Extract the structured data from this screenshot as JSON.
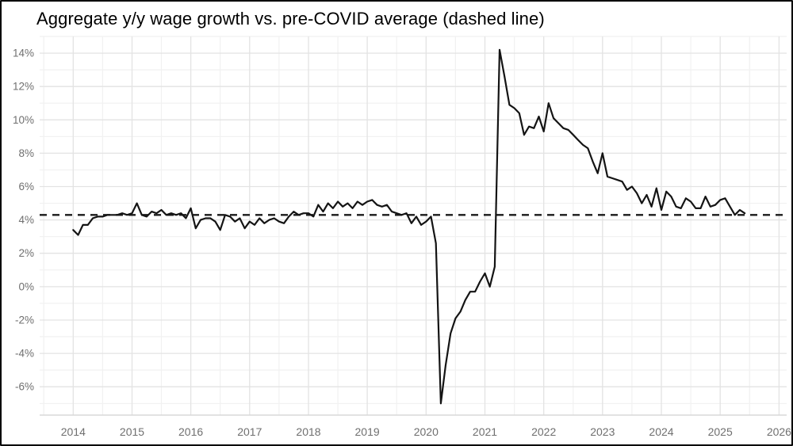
{
  "title": "Aggregate y/y wage growth vs. pre-COVID average (dashed line)",
  "colors": {
    "background": "#ffffff",
    "frame_border": "#000000",
    "series_line": "#141414",
    "dashed_line": "#1a1a1a",
    "grid_major": "#e3e3e3",
    "grid_minor": "#f1f1f1",
    "axis_baseline": "#d8d8d8",
    "tick_label": "#6f6f6f",
    "title_text": "#000000"
  },
  "chart_data": {
    "type": "line",
    "title": "Aggregate y/y wage growth vs. pre-COVID average (dashed line)",
    "xlabel": "",
    "ylabel": "",
    "grid": "on",
    "legend": "none",
    "xlim": [
      2013.43,
      2026.13
    ],
    "ylim": [
      -7.7,
      15
    ],
    "x_ticks": [
      2014,
      2015,
      2016,
      2017,
      2018,
      2019,
      2020,
      2021,
      2022,
      2023,
      2024,
      2025,
      2026
    ],
    "x_minor_ticks": [
      2013.5,
      2014.5,
      2015.5,
      2016.5,
      2017.5,
      2018.5,
      2019.5,
      2020.5,
      2021.5,
      2022.5,
      2023.5,
      2024.5,
      2025.5
    ],
    "y_ticks": [
      {
        "value": 14,
        "label": "14%"
      },
      {
        "value": 12,
        "label": "12%"
      },
      {
        "value": 10,
        "label": "10%"
      },
      {
        "value": 8,
        "label": "8%"
      },
      {
        "value": 6,
        "label": "6%"
      },
      {
        "value": 4,
        "label": "4%"
      },
      {
        "value": 2,
        "label": "2%"
      },
      {
        "value": 0,
        "label": "0%"
      },
      {
        "value": -2,
        "label": "-2%"
      },
      {
        "value": -4,
        "label": "-4%"
      },
      {
        "value": -6,
        "label": "-6%"
      }
    ],
    "y_minor_ticks": [
      15,
      13,
      11,
      9,
      7,
      5,
      3,
      1,
      -1,
      -3,
      -5,
      -7
    ],
    "series": [
      {
        "name": "Aggregate y/y wage growth",
        "style": "solid",
        "unit": "percent",
        "frequency": "monthly",
        "start_year": 2014,
        "start_month": 1,
        "end": "2025-06",
        "values": [
          3.4,
          3.1,
          3.7,
          3.7,
          4.1,
          4.2,
          4.2,
          4.3,
          4.3,
          4.3,
          4.4,
          4.3,
          4.4,
          5.0,
          4.3,
          4.2,
          4.5,
          4.4,
          4.6,
          4.3,
          4.4,
          4.3,
          4.4,
          4.1,
          4.7,
          3.5,
          4.0,
          4.1,
          4.1,
          3.9,
          3.4,
          4.3,
          4.2,
          3.9,
          4.1,
          3.5,
          3.9,
          3.7,
          4.1,
          3.8,
          4.0,
          4.1,
          3.9,
          3.8,
          4.2,
          4.5,
          4.3,
          4.4,
          4.4,
          4.2,
          4.9,
          4.5,
          5.0,
          4.7,
          5.1,
          4.8,
          5.0,
          4.7,
          5.1,
          4.9,
          5.1,
          5.2,
          4.9,
          4.8,
          4.9,
          4.5,
          4.4,
          4.3,
          4.4,
          3.8,
          4.2,
          3.7,
          3.9,
          4.2,
          2.6,
          -7.0,
          -4.7,
          -2.8,
          -1.9,
          -1.5,
          -0.8,
          -0.3,
          -0.3,
          0.3,
          0.8,
          0.0,
          1.2,
          14.2,
          12.6,
          10.9,
          10.7,
          10.4,
          9.1,
          9.6,
          9.5,
          10.2,
          9.3,
          11.0,
          10.1,
          9.8,
          9.5,
          9.4,
          9.1,
          8.8,
          8.5,
          8.3,
          7.5,
          6.8,
          8.0,
          6.6,
          6.5,
          6.4,
          6.3,
          5.8,
          6.0,
          5.6,
          5.0,
          5.5,
          4.8,
          5.9,
          4.6,
          5.7,
          5.4,
          4.8,
          4.7,
          5.3,
          5.1,
          4.7,
          4.7,
          5.4,
          4.8,
          4.9,
          5.2,
          5.3,
          4.8,
          4.3,
          4.6,
          4.4
        ]
      },
      {
        "name": "Pre-COVID average",
        "style": "dashed",
        "unit": "percent",
        "value": 4.3
      }
    ]
  }
}
